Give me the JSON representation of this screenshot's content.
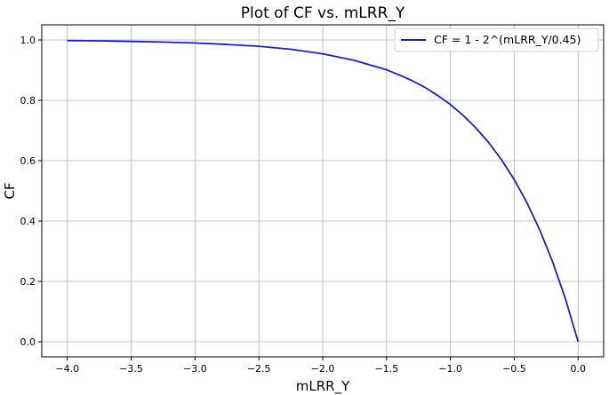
{
  "chart_data": {
    "type": "line",
    "title": "Plot of CF vs. mLRR_Y",
    "xlabel": "mLRR_Y",
    "ylabel": "CF",
    "xlim": [
      -4.2,
      0.2
    ],
    "ylim": [
      -0.05,
      1.05
    ],
    "xticks": [
      -4.0,
      -3.5,
      -3.0,
      -2.5,
      -2.0,
      -1.5,
      -1.0,
      -0.5,
      0.0
    ],
    "xtick_labels": [
      "−4.0",
      "−3.5",
      "−3.0",
      "−2.5",
      "−2.0",
      "−1.5",
      "−1.0",
      "−0.5",
      "0.0"
    ],
    "yticks": [
      0.0,
      0.2,
      0.4,
      0.6,
      0.8,
      1.0
    ],
    "ytick_labels": [
      "0.0",
      "0.2",
      "0.4",
      "0.6",
      "0.8",
      "1.0"
    ],
    "grid": true,
    "legend_position": "top-right",
    "series": [
      {
        "name": "CF = 1 - 2^(mLRR_Y/0.45)",
        "color": "#1f1fb4",
        "x": [
          -4.0,
          -3.75,
          -3.5,
          -3.25,
          -3.0,
          -2.75,
          -2.5,
          -2.25,
          -2.0,
          -1.75,
          -1.5,
          -1.4,
          -1.3,
          -1.2,
          -1.1,
          -1.0,
          -0.9,
          -0.8,
          -0.7,
          -0.6,
          -0.5,
          -0.4,
          -0.3,
          -0.2,
          -0.1,
          0.0
        ],
        "y": [
          0.998,
          0.997,
          0.995,
          0.993,
          0.99,
          0.985,
          0.979,
          0.969,
          0.954,
          0.932,
          0.901,
          0.884,
          0.865,
          0.843,
          0.816,
          0.786,
          0.75,
          0.708,
          0.66,
          0.603,
          0.537,
          0.46,
          0.37,
          0.265,
          0.143,
          0.0
        ]
      }
    ]
  }
}
